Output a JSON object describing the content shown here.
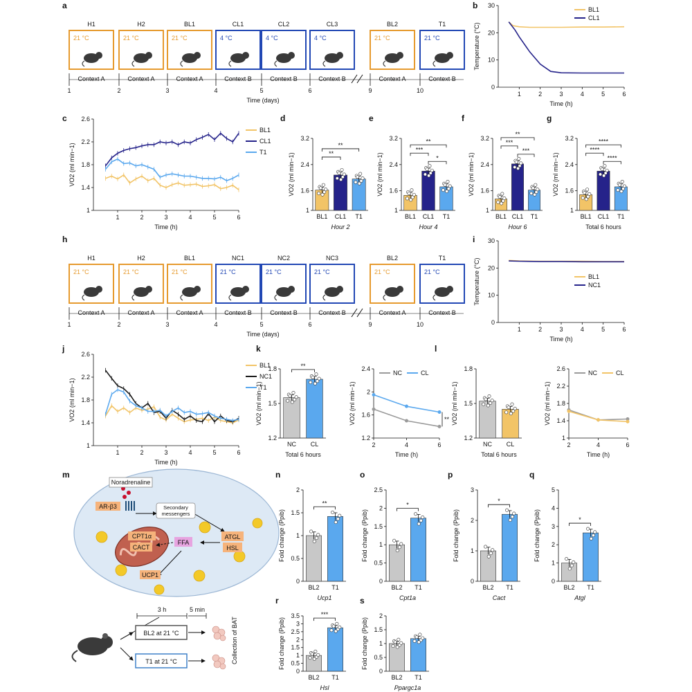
{
  "colors": {
    "bl": "#f2c467",
    "cl": "#25238a",
    "t1": "#5aa8ee",
    "nc": "#1a1a1a",
    "nc_gray": "#9a9a9a",
    "cl_light": "#5aa8ee",
    "orange": "#e69a2e",
    "blue": "#2147b4",
    "gray_bar": "#c8c8c8"
  },
  "panel_letters": [
    "a",
    "b",
    "c",
    "d",
    "e",
    "f",
    "g",
    "h",
    "i",
    "j",
    "k",
    "l",
    "m",
    "n",
    "o",
    "p",
    "q",
    "r",
    "s"
  ],
  "panel_a": {
    "boxes": [
      {
        "name": "H1",
        "temp": "21 °C",
        "ctx": "Context A",
        "day": "1",
        "kind": "warm"
      },
      {
        "name": "H2",
        "temp": "21 °C",
        "ctx": "Context A",
        "day": "2",
        "kind": "warm"
      },
      {
        "name": "BL1",
        "temp": "21 °C",
        "ctx": "Context A",
        "day": "3",
        "kind": "warm"
      },
      {
        "name": "CL1",
        "temp": "4 °C",
        "ctx": "Context B",
        "day": "4",
        "kind": "cold"
      },
      {
        "name": "CL2",
        "temp": "4 °C",
        "ctx": "Context B",
        "day": "5",
        "kind": "cold"
      },
      {
        "name": "CL3",
        "temp": "4 °C",
        "ctx": "Context B",
        "day": "6",
        "kind": "cold"
      },
      {
        "name": "BL2",
        "temp": "21 °C",
        "ctx": "Context A",
        "day": "9",
        "kind": "warm"
      },
      {
        "name": "T1",
        "temp": "21 °C",
        "ctx": "Context B",
        "day": "10",
        "kind": "cold"
      }
    ],
    "axis_label": "Time (days)"
  },
  "panel_h": {
    "boxes": [
      {
        "name": "H1",
        "temp": "21 °C",
        "ctx": "Context A",
        "day": "1",
        "kind": "warm"
      },
      {
        "name": "H2",
        "temp": "21 °C",
        "ctx": "Context A",
        "day": "2",
        "kind": "warm"
      },
      {
        "name": "BL1",
        "temp": "21 °C",
        "ctx": "Context A",
        "day": "3",
        "kind": "warm"
      },
      {
        "name": "NC1",
        "temp": "21 °C",
        "ctx": "Context B",
        "day": "4",
        "kind": "cold"
      },
      {
        "name": "NC2",
        "temp": "21 °C",
        "ctx": "Context B",
        "day": "5",
        "kind": "cold"
      },
      {
        "name": "NC3",
        "temp": "21 °C",
        "ctx": "Context B",
        "day": "6",
        "kind": "cold"
      },
      {
        "name": "BL2",
        "temp": "21 °C",
        "ctx": "Context A",
        "day": "9",
        "kind": "warm"
      },
      {
        "name": "T1",
        "temp": "21 °C",
        "ctx": "Context B",
        "day": "10",
        "kind": "cold"
      }
    ],
    "axis_label": "Time (days)"
  },
  "chart_data": [
    {
      "id": "b",
      "type": "line",
      "xlabel": "Time (h)",
      "ylabel": "Temperature (°C)",
      "xlim": [
        0,
        6
      ],
      "ylim": [
        0,
        30
      ],
      "xticks": [
        1,
        2,
        3,
        4,
        5,
        6
      ],
      "yticks": [
        0,
        10,
        20,
        30
      ],
      "series": [
        {
          "name": "BL1",
          "color": "bl",
          "x": [
            0.5,
            0.7,
            1,
            1.5,
            2,
            3,
            4,
            5,
            6
          ],
          "y": [
            24,
            22.6,
            22.2,
            22,
            22,
            22,
            22.1,
            22.1,
            22.2
          ]
        },
        {
          "name": "CL1",
          "color": "cl",
          "x": [
            0.5,
            0.8,
            1,
            1.5,
            2,
            2.5,
            3,
            4,
            5,
            6
          ],
          "y": [
            24,
            21,
            18.5,
            13,
            8.5,
            5.8,
            5.3,
            5.2,
            5.2,
            5.2
          ]
        }
      ]
    },
    {
      "id": "c",
      "type": "line",
      "xlabel": "Time (h)",
      "ylabel": "VO2 (ml min−1)",
      "xlim": [
        0,
        6
      ],
      "ylim": [
        1.0,
        2.6
      ],
      "xticks": [
        1,
        2,
        3,
        4,
        5,
        6
      ],
      "yticks": [
        1.0,
        1.4,
        1.8,
        2.2,
        2.6
      ],
      "series": [
        {
          "name": "BL1",
          "color": "bl",
          "x": [
            0.5,
            0.75,
            1,
            1.25,
            1.5,
            1.75,
            2,
            2.25,
            2.5,
            2.75,
            3,
            3.25,
            3.5,
            3.75,
            4,
            4.25,
            4.5,
            4.75,
            5,
            5.25,
            5.5,
            5.75,
            6
          ],
          "y": [
            1.56,
            1.6,
            1.55,
            1.62,
            1.48,
            1.55,
            1.6,
            1.52,
            1.56,
            1.44,
            1.4,
            1.45,
            1.48,
            1.44,
            1.45,
            1.46,
            1.42,
            1.43,
            1.45,
            1.38,
            1.4,
            1.44,
            1.36
          ]
        },
        {
          "name": "CL1",
          "color": "cl",
          "x": [
            0.5,
            0.75,
            1,
            1.25,
            1.5,
            1.75,
            2,
            2.25,
            2.5,
            2.75,
            3,
            3.25,
            3.5,
            3.75,
            4,
            4.25,
            4.5,
            4.75,
            5,
            5.25,
            5.5,
            5.75,
            6
          ],
          "y": [
            1.78,
            1.92,
            2.0,
            2.05,
            2.08,
            2.1,
            2.13,
            2.15,
            2.15,
            2.2,
            2.18,
            2.2,
            2.15,
            2.2,
            2.18,
            2.24,
            2.28,
            2.33,
            2.24,
            2.35,
            2.26,
            2.2,
            2.35
          ]
        },
        {
          "name": "T1",
          "color": "t1",
          "x": [
            0.5,
            0.75,
            1,
            1.25,
            1.5,
            1.75,
            2,
            2.25,
            2.5,
            2.75,
            3,
            3.25,
            3.5,
            3.75,
            4,
            4.25,
            4.5,
            4.75,
            5,
            5.25,
            5.5,
            5.75,
            6
          ],
          "y": [
            1.72,
            1.85,
            1.9,
            1.82,
            1.83,
            1.78,
            1.8,
            1.76,
            1.72,
            1.58,
            1.62,
            1.64,
            1.62,
            1.6,
            1.6,
            1.58,
            1.56,
            1.56,
            1.55,
            1.58,
            1.52,
            1.56,
            1.62
          ]
        }
      ]
    },
    {
      "id": "d",
      "type": "bar",
      "xlabel": "Hour 2",
      "ylabel": "VO2 (ml min−1)",
      "ylim": [
        1.0,
        3.2
      ],
      "yticks": [
        1.0,
        1.6,
        2.4,
        3.2
      ],
      "categories": [
        "BL1",
        "CL1",
        "T1"
      ],
      "values": [
        1.62,
        2.08,
        1.96
      ],
      "colors": [
        "bl",
        "cl",
        "t1"
      ],
      "sig": [
        "**",
        "**"
      ]
    },
    {
      "id": "e",
      "type": "bar",
      "xlabel": "Hour 4",
      "ylabel": "VO2 (ml min−1)",
      "ylim": [
        1.0,
        3.2
      ],
      "yticks": [
        1.0,
        1.6,
        2.4,
        3.2
      ],
      "categories": [
        "BL1",
        "CL1",
        "T1"
      ],
      "values": [
        1.46,
        2.2,
        1.72
      ],
      "colors": [
        "bl",
        "cl",
        "t1"
      ],
      "sig": [
        "**",
        "***",
        "*"
      ]
    },
    {
      "id": "f",
      "type": "bar",
      "xlabel": "Hour 6",
      "ylabel": "VO2 (ml min−1)",
      "ylim": [
        1.0,
        3.2
      ],
      "yticks": [
        1.0,
        1.6,
        2.4,
        3.2
      ],
      "categories": [
        "BL1",
        "CL1",
        "T1"
      ],
      "values": [
        1.35,
        2.42,
        1.62
      ],
      "colors": [
        "bl",
        "cl",
        "t1"
      ],
      "sig": [
        "**",
        "***",
        "***"
      ]
    },
    {
      "id": "g",
      "type": "bar",
      "xlabel": "Total 6 hours",
      "ylabel": "VO2 (ml min−1)",
      "ylim": [
        1.0,
        3.2
      ],
      "yticks": [
        1.0,
        1.6,
        2.4,
        3.2
      ],
      "categories": [
        "BL1",
        "CL1",
        "T1"
      ],
      "values": [
        1.48,
        2.2,
        1.72
      ],
      "colors": [
        "bl",
        "cl",
        "t1"
      ],
      "sig": [
        "****",
        "****",
        "****"
      ]
    },
    {
      "id": "i",
      "type": "line",
      "xlabel": "Time (h)",
      "ylabel": "Temperature (°C)",
      "xlim": [
        0,
        6
      ],
      "ylim": [
        0,
        30
      ],
      "xticks": [
        1,
        2,
        3,
        4,
        5,
        6
      ],
      "yticks": [
        0,
        10,
        20,
        30
      ],
      "series": [
        {
          "name": "BL1",
          "color": "bl",
          "x": [
            0.5,
            1,
            2,
            3,
            4,
            5,
            6
          ],
          "y": [
            22.8,
            22.6,
            22.5,
            22.5,
            22.5,
            22.4,
            22.4
          ]
        },
        {
          "name": "NC1",
          "color": "cl",
          "x": [
            0.5,
            1,
            2,
            3,
            4,
            5,
            6
          ],
          "y": [
            22.6,
            22.5,
            22.4,
            22.4,
            22.3,
            22.3,
            22.3
          ]
        }
      ]
    },
    {
      "id": "j",
      "type": "line",
      "xlabel": "Time (h)",
      "ylabel": "VO2 (ml min−1)",
      "xlim": [
        0,
        6
      ],
      "ylim": [
        1.0,
        2.6
      ],
      "xticks": [
        1,
        2,
        3,
        4,
        5,
        6
      ],
      "yticks": [
        1.0,
        1.4,
        1.8,
        2.2,
        2.6
      ],
      "series": [
        {
          "name": "BL1",
          "color": "bl",
          "x": [
            0.5,
            0.75,
            1,
            1.25,
            1.5,
            1.75,
            2,
            2.25,
            2.5,
            2.75,
            3,
            3.25,
            3.5,
            3.75,
            4,
            4.25,
            4.5,
            4.75,
            5,
            5.25,
            5.5,
            5.75,
            6
          ],
          "y": [
            1.52,
            1.7,
            1.6,
            1.66,
            1.58,
            1.66,
            1.62,
            1.64,
            1.68,
            1.5,
            1.45,
            1.55,
            1.48,
            1.42,
            1.45,
            1.46,
            1.48,
            1.44,
            1.5,
            1.44,
            1.42,
            1.4,
            1.45
          ]
        },
        {
          "name": "NC1",
          "color": "nc",
          "x": [
            0.5,
            0.75,
            1,
            1.25,
            1.5,
            1.75,
            2,
            2.25,
            2.5,
            2.75,
            3,
            3.25,
            3.5,
            3.75,
            4,
            4.25,
            4.5,
            4.75,
            5,
            5.25,
            5.5,
            5.75,
            6
          ],
          "y": [
            2.32,
            2.18,
            2.05,
            2.0,
            1.9,
            1.74,
            1.66,
            1.74,
            1.58,
            1.6,
            1.48,
            1.62,
            1.55,
            1.46,
            1.52,
            1.44,
            1.42,
            1.56,
            1.42,
            1.52,
            1.44,
            1.42,
            1.48
          ]
        },
        {
          "name": "T1",
          "color": "t1",
          "x": [
            0.5,
            0.75,
            1,
            1.25,
            1.5,
            1.75,
            2,
            2.25,
            2.5,
            2.75,
            3,
            3.25,
            3.5,
            3.75,
            4,
            4.25,
            4.5,
            4.75,
            5,
            5.25,
            5.5,
            5.75,
            6
          ],
          "y": [
            1.55,
            1.9,
            1.98,
            1.94,
            1.78,
            1.7,
            1.66,
            1.6,
            1.6,
            1.62,
            1.52,
            1.6,
            1.66,
            1.58,
            1.6,
            1.55,
            1.56,
            1.58,
            1.52,
            1.48,
            1.46,
            1.44,
            1.46
          ]
        }
      ]
    },
    {
      "id": "k1",
      "type": "bar",
      "xlabel": "Total 6 hours",
      "ylabel": "VO2 (ml min−1)",
      "ylim": [
        1.2,
        1.8
      ],
      "yticks": [
        1.2,
        1.5,
        1.8
      ],
      "categories": [
        "NC",
        "CL"
      ],
      "values": [
        1.55,
        1.71
      ],
      "colors": [
        "gray_bar",
        "cl_light"
      ],
      "sig": [
        "**"
      ]
    },
    {
      "id": "k2",
      "type": "line",
      "xlabel": "Time (h)",
      "ylabel": "VO2 (ml min−1)",
      "xlim": [
        2,
        6
      ],
      "ylim": [
        1.2,
        2.4
      ],
      "xticks": [
        2,
        4,
        6
      ],
      "yticks": [
        1.2,
        1.6,
        2.0,
        2.4
      ],
      "series": [
        {
          "name": "NC",
          "color": "nc_gray",
          "x": [
            2,
            4,
            6
          ],
          "y": [
            1.7,
            1.5,
            1.4
          ]
        },
        {
          "name": "CL",
          "color": "cl_light",
          "x": [
            2,
            4,
            6
          ],
          "y": [
            1.95,
            1.75,
            1.65
          ]
        }
      ],
      "sig": "**"
    },
    {
      "id": "l1",
      "type": "bar",
      "xlabel": "Total 6 hours",
      "ylabel": "VO2 (ml min−1)",
      "ylim": [
        1.2,
        1.8
      ],
      "yticks": [
        1.2,
        1.5,
        1.8
      ],
      "categories": [
        "NC",
        "CL"
      ],
      "values": [
        1.52,
        1.45
      ],
      "colors": [
        "gray_bar",
        "bl"
      ]
    },
    {
      "id": "l2",
      "type": "line",
      "xlabel": "Time (h)",
      "ylabel": "VO2 (ml min−1)",
      "xlim": [
        2,
        6
      ],
      "ylim": [
        1.0,
        2.6
      ],
      "xticks": [
        2,
        4,
        6
      ],
      "yticks": [
        1.0,
        1.4,
        1.8,
        2.2,
        2.6
      ],
      "series": [
        {
          "name": "NC",
          "color": "nc_gray",
          "x": [
            2,
            4,
            6
          ],
          "y": [
            1.65,
            1.42,
            1.44
          ]
        },
        {
          "name": "CL",
          "color": "bl",
          "x": [
            2,
            4,
            6
          ],
          "y": [
            1.62,
            1.42,
            1.38
          ]
        }
      ]
    },
    {
      "id": "n",
      "type": "bar",
      "xlabel": "Ucp1",
      "ylabel": "Fold change (Ppib)",
      "ylim": [
        0,
        2.0
      ],
      "yticks": [
        0,
        0.5,
        1.0,
        1.5,
        2.0
      ],
      "categories": [
        "BL2",
        "T1"
      ],
      "values": [
        1.0,
        1.42
      ],
      "colors": [
        "gray_bar",
        "cl_light"
      ],
      "sig": [
        "**"
      ]
    },
    {
      "id": "o",
      "type": "bar",
      "xlabel": "Cpt1a",
      "ylabel": "Fold change (Ppib)",
      "ylim": [
        0,
        2.5
      ],
      "yticks": [
        0,
        0.5,
        1.0,
        1.5,
        2.0,
        2.5
      ],
      "categories": [
        "BL2",
        "T1"
      ],
      "values": [
        1.0,
        1.73
      ],
      "colors": [
        "gray_bar",
        "cl_light"
      ],
      "sig": [
        "*"
      ]
    },
    {
      "id": "p",
      "type": "bar",
      "xlabel": "Cact",
      "ylabel": "Fold change (Ppib)",
      "ylim": [
        0,
        3
      ],
      "yticks": [
        0,
        1,
        2,
        3
      ],
      "categories": [
        "BL2",
        "T1"
      ],
      "values": [
        1.0,
        2.2
      ],
      "colors": [
        "gray_bar",
        "cl_light"
      ],
      "sig": [
        "*"
      ]
    },
    {
      "id": "q",
      "type": "bar",
      "xlabel": "Atgl",
      "ylabel": "Fold change (Ppib)",
      "ylim": [
        0,
        5
      ],
      "yticks": [
        0,
        1,
        2,
        3,
        4,
        5
      ],
      "categories": [
        "BL2",
        "T1"
      ],
      "values": [
        1.0,
        2.65
      ],
      "colors": [
        "gray_bar",
        "cl_light"
      ],
      "sig": [
        "*"
      ]
    },
    {
      "id": "r",
      "type": "bar",
      "xlabel": "Hsl",
      "ylabel": "Fold change (Ppib)",
      "ylim": [
        0,
        3.5
      ],
      "yticks": [
        0,
        0.5,
        1.0,
        1.5,
        2.0,
        2.5,
        3.0,
        3.5
      ],
      "categories": [
        "BL2",
        "T1"
      ],
      "values": [
        1.0,
        2.75
      ],
      "colors": [
        "gray_bar",
        "cl_light"
      ],
      "sig": [
        "***"
      ]
    },
    {
      "id": "s",
      "type": "bar",
      "xlabel": "Ppargc1a",
      "ylabel": "Fold change (Ppib)",
      "ylim": [
        0,
        2.0
      ],
      "yticks": [
        0,
        0.5,
        1.0,
        1.5,
        2.0
      ],
      "categories": [
        "BL2",
        "T1"
      ],
      "values": [
        1.0,
        1.18
      ],
      "colors": [
        "gray_bar",
        "cl_light"
      ]
    }
  ],
  "panel_m": {
    "noradrenaline": "Noradrenaline",
    "receptor": "AR-β3",
    "messengers": "Secondary messengers",
    "cpt": "CPT1α",
    "cact": "CACT",
    "ffa": "FFA",
    "atgl": "ATGL",
    "hsl": "HSL",
    "ucp1": "UCP1",
    "dur1": "3 h",
    "dur2": "5 min",
    "box1": "BL2 at 21 °C",
    "box2": "T1 at 21 °C",
    "collect": "Collection of BAT"
  }
}
